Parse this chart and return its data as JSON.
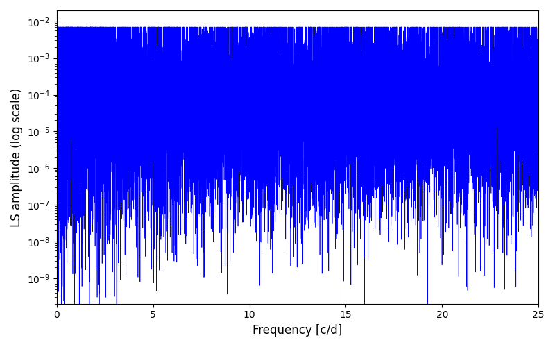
{
  "xlabel": "Frequency [c/d]",
  "ylabel": "LS amplitude (log scale)",
  "xlim": [
    0,
    25
  ],
  "ylim_log_min": -9.7,
  "ylim_log_max": -1.7,
  "line_color": "#0000ff",
  "linewidth": 0.5,
  "figsize": [
    8.0,
    5.0
  ],
  "dpi": 100,
  "background_color": "#ffffff",
  "seed": 42,
  "n_points": 12000,
  "freq_max": 25.0
}
